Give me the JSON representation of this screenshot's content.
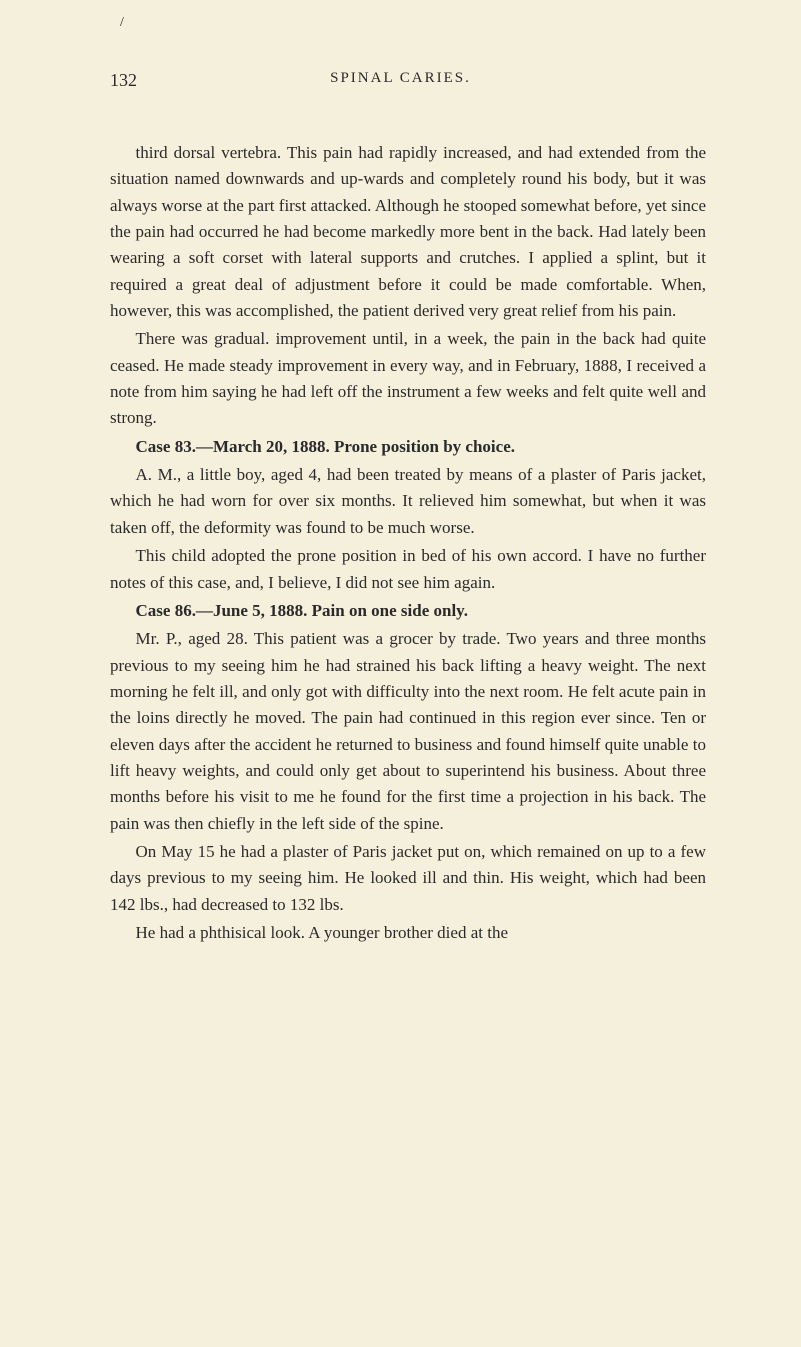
{
  "page": {
    "number": "132",
    "header": "SPINAL CARIES.",
    "tick": "/"
  },
  "paragraphs": {
    "p1": "third dorsal vertebra. This pain had rapidly increased, and had extended from the situation named downwards and up-wards and completely round his body, but it was always worse at the part first attacked. Although he stooped somewhat before, yet since the pain had occurred he had become markedly more bent in the back. Had lately been wearing a soft corset with lateral supports and crutches. I applied a splint, but it required a great deal of adjustment before it could be made comfortable. When, however, this was accomplished, the patient derived very great relief from his pain.",
    "p2": "There was gradual. improvement until, in a week, the pain in the back had quite ceased. He made steady improvement in every way, and in February, 1888, I received a note from him saying he had left off the instrument a few weeks and felt quite well and strong.",
    "case83_heading": "Case 83.—March 20, 1888. Prone position by choice.",
    "p3": "A. M., a little boy, aged 4, had been treated by means of a plaster of Paris jacket, which he had worn for over six months. It relieved him somewhat, but when it was taken off, the deformity was found to be much worse.",
    "p4": "This child adopted the prone position in bed of his own accord. I have no further notes of this case, and, I believe, I did not see him again.",
    "case86_heading": "Case 86.—June 5, 1888. Pain on one side only.",
    "p5": "Mr. P., aged 28. This patient was a grocer by trade. Two years and three months previous to my seeing him he had strained his back lifting a heavy weight. The next morning he felt ill, and only got with difficulty into the next room. He felt acute pain in the loins directly he moved. The pain had continued in this region ever since. Ten or eleven days after the accident he returned to business and found himself quite unable to lift heavy weights, and could only get about to superintend his business. About three months before his visit to me he found for the first time a projection in his back. The pain was then chiefly in the left side of the spine.",
    "p6": "On May 15 he had a plaster of Paris jacket put on, which remained on up to a few days previous to my seeing him. He looked ill and thin. His weight, which had been 142 lbs., had decreased to 132 lbs.",
    "p7": "He had a phthisical look. A younger brother died at the"
  }
}
